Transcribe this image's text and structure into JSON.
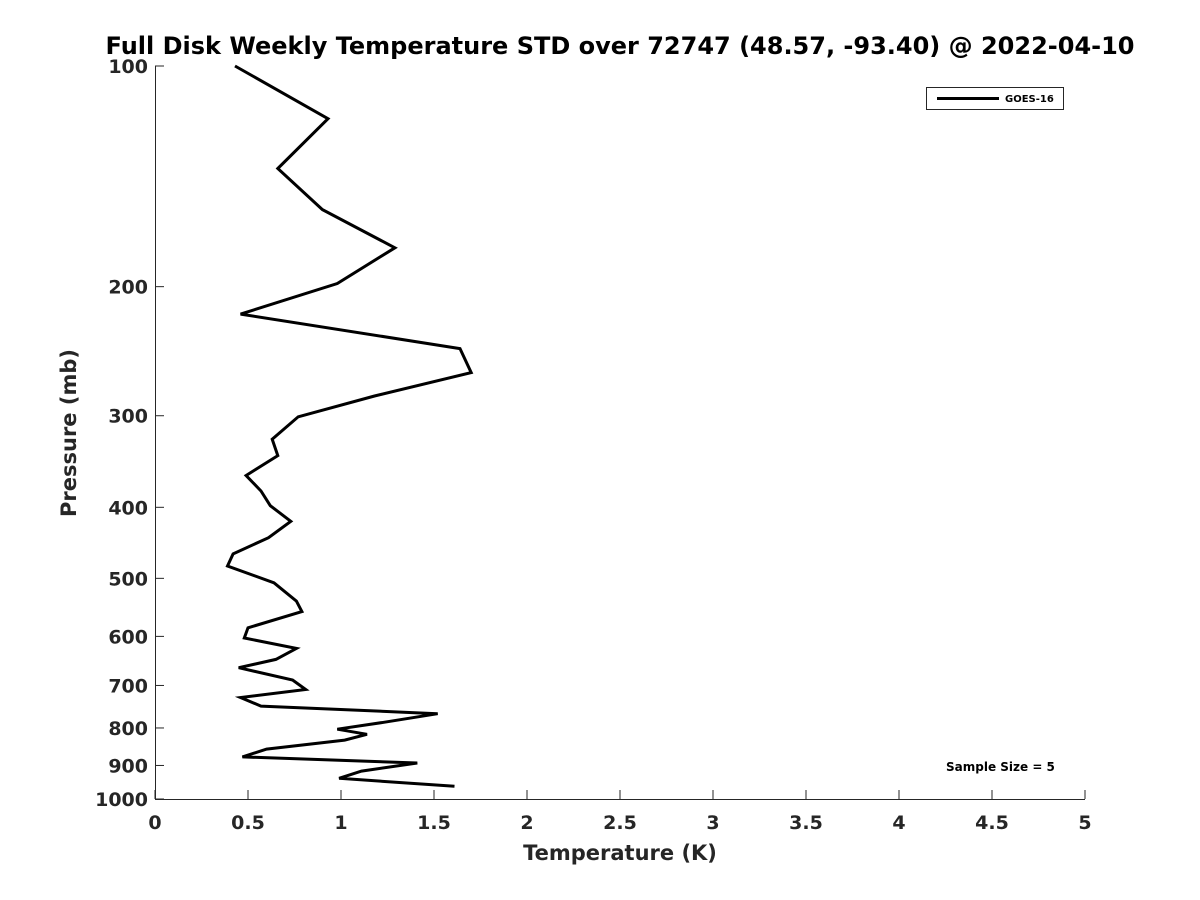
{
  "chart_data": {
    "type": "line",
    "title": "Full Disk Weekly Temperature STD over 72747 (48.57, -93.40) @ 2022-04-10",
    "xlabel": "Temperature (K)",
    "ylabel": "Pressure (mb)",
    "xlim": [
      0,
      5
    ],
    "ylim": [
      100,
      1000
    ],
    "y_scale": "log",
    "y_reversed": true,
    "x_ticks": [
      0,
      0.5,
      1,
      1.5,
      2,
      2.5,
      3,
      3.5,
      4,
      4.5,
      5
    ],
    "x_tick_labels": [
      "0",
      "0.5",
      "1",
      "1.5",
      "2",
      "2.5",
      "3",
      "3.5",
      "4",
      "4.5",
      "5"
    ],
    "y_ticks": [
      100,
      200,
      300,
      400,
      500,
      600,
      700,
      800,
      900,
      1000
    ],
    "y_tick_labels": [
      "100",
      "200",
      "300",
      "400",
      "500",
      "600",
      "700",
      "800",
      "900",
      "1000"
    ],
    "grid": false,
    "legend_position": "top-right",
    "annotation": "Sample Size = 5",
    "series": [
      {
        "name": "GOES-16",
        "color": "#000000",
        "points": [
          [
            0.43,
            100
          ],
          [
            0.93,
            118
          ],
          [
            0.66,
            138
          ],
          [
            0.9,
            157
          ],
          [
            1.29,
            177
          ],
          [
            0.98,
            198
          ],
          [
            0.46,
            218
          ],
          [
            1.64,
            243
          ],
          [
            1.7,
            262
          ],
          [
            1.18,
            282
          ],
          [
            0.77,
            301
          ],
          [
            0.63,
            323
          ],
          [
            0.66,
            340
          ],
          [
            0.49,
            362
          ],
          [
            0.57,
            380
          ],
          [
            0.62,
            398
          ],
          [
            0.73,
            418
          ],
          [
            0.61,
            440
          ],
          [
            0.42,
            463
          ],
          [
            0.39,
            481
          ],
          [
            0.64,
            507
          ],
          [
            0.76,
            537
          ],
          [
            0.79,
            555
          ],
          [
            0.5,
            584
          ],
          [
            0.48,
            603
          ],
          [
            0.76,
            623
          ],
          [
            0.65,
            645
          ],
          [
            0.45,
            662
          ],
          [
            0.74,
            688
          ],
          [
            0.81,
            709
          ],
          [
            0.46,
            727
          ],
          [
            0.57,
            747
          ],
          [
            1.52,
            765
          ],
          [
            1.23,
            786
          ],
          [
            0.98,
            803
          ],
          [
            1.14,
            816
          ],
          [
            1.02,
            831
          ],
          [
            0.6,
            855
          ],
          [
            0.47,
            876
          ],
          [
            1.41,
            893
          ],
          [
            1.11,
            916
          ],
          [
            0.99,
            937
          ],
          [
            1.61,
            961
          ]
        ]
      }
    ]
  }
}
